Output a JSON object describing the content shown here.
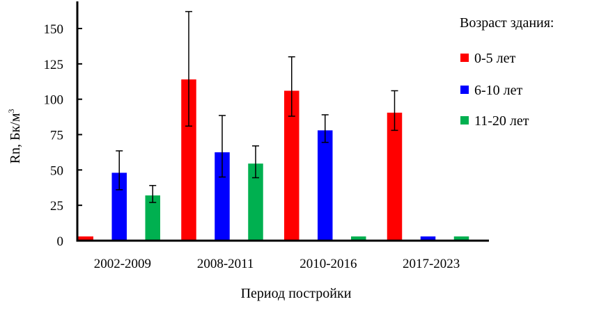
{
  "chart_data": {
    "type": "bar",
    "title": "",
    "xlabel": "Период постройки",
    "ylabel": "Rn, Бк/м³",
    "ylabel_main": "Rn, Бк/м",
    "ylabel_sup": "3",
    "ylim": [
      0,
      165
    ],
    "yticks": [
      0,
      25,
      50,
      75,
      100,
      125,
      150
    ],
    "grid": false,
    "legend_position": "right-top",
    "legend_title": "Возраст здания:",
    "categories": [
      "2002-2009",
      "2008-2011",
      "2010-2016",
      "2017-2023"
    ],
    "series": [
      {
        "name": "0-5 лет",
        "color": "#ff0000",
        "values": [
          3,
          114,
          106,
          90.5
        ],
        "err_low": [
          null,
          81,
          88,
          78
        ],
        "err_high": [
          null,
          162,
          130,
          106
        ]
      },
      {
        "name": "6-10 лет",
        "color": "#0000ff",
        "values": [
          48,
          62.5,
          78,
          3
        ],
        "err_low": [
          36,
          45,
          69.5,
          null
        ],
        "err_high": [
          63.5,
          88.5,
          89,
          null
        ]
      },
      {
        "name": "11-20 лет",
        "color": "#00b050",
        "values": [
          32,
          54.5,
          3,
          3
        ],
        "err_low": [
          27,
          44.5,
          null,
          null
        ],
        "err_high": [
          39,
          67,
          null,
          null
        ]
      }
    ]
  }
}
